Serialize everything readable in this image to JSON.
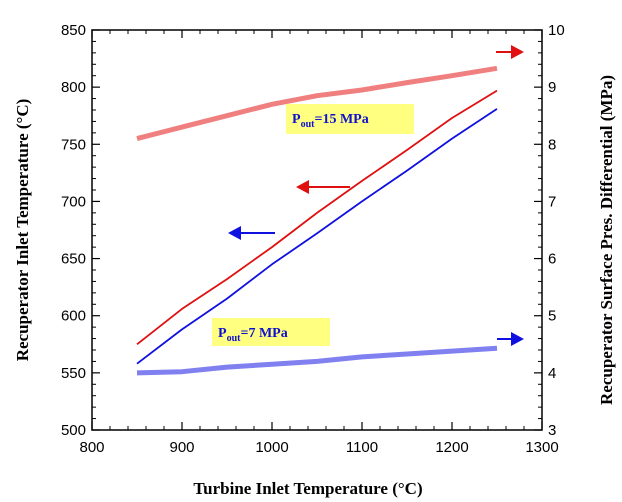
{
  "chart_data": {
    "type": "line",
    "title": "",
    "xlabel": "Turbine Inlet Temperature (°C)",
    "ylabel": "Recuperator Inlet Temperature (°C)",
    "y2label": "Recuperator Surface Pres. Differential (MPa)",
    "xlim": [
      800,
      1300
    ],
    "ylim": [
      500,
      850
    ],
    "y2lim": [
      3,
      10
    ],
    "xticks": [
      "800",
      "900",
      "1000",
      "1100",
      "1200",
      "1300"
    ],
    "yticks": [
      "500",
      "550",
      "600",
      "650",
      "700",
      "750",
      "800",
      "850"
    ],
    "y2ticks": [
      "3",
      "4",
      "5",
      "6",
      "7",
      "8",
      "9",
      "10"
    ],
    "grid": false,
    "series": [
      {
        "axis": "left",
        "color": "#e01010",
        "x": [
          850,
          900,
          950,
          1000,
          1050,
          1100,
          1150,
          1200,
          1250
        ],
        "y": [
          575,
          606,
          632,
          660,
          690,
          718,
          745,
          773,
          797
        ]
      },
      {
        "axis": "left",
        "color": "#1010e0",
        "x": [
          850,
          900,
          950,
          1000,
          1050,
          1100,
          1150,
          1200,
          1250
        ],
        "y": [
          558,
          588,
          615,
          645,
          672,
          700,
          727,
          755,
          781
        ]
      },
      {
        "axis": "right",
        "color": "#f08080",
        "x": [
          850,
          900,
          950,
          1000,
          1050,
          1100,
          1150,
          1200,
          1250
        ],
        "y": [
          8.1,
          8.3,
          8.5,
          8.7,
          8.85,
          8.95,
          9.08,
          9.2,
          9.33
        ]
      },
      {
        "axis": "right",
        "color": "#8080f0",
        "x": [
          850,
          900,
          950,
          1000,
          1050,
          1100,
          1150,
          1200,
          1250
        ],
        "y": [
          4.0,
          4.02,
          4.1,
          4.15,
          4.2,
          4.28,
          4.33,
          4.38,
          4.43
        ]
      }
    ],
    "annotations": [
      {
        "main": "P",
        "sub": "out",
        "rest": "=15 MPa",
        "bg": "#ffff80"
      },
      {
        "main": "P",
        "sub": "out",
        "rest": "=7 MPa",
        "bg": "#ffff80"
      }
    ],
    "arrows": [
      {
        "color": "#e01010",
        "direction": "right"
      },
      {
        "color": "#e01010",
        "direction": "left"
      },
      {
        "color": "#1010e0",
        "direction": "left"
      },
      {
        "color": "#1010e0",
        "direction": "right"
      }
    ]
  }
}
